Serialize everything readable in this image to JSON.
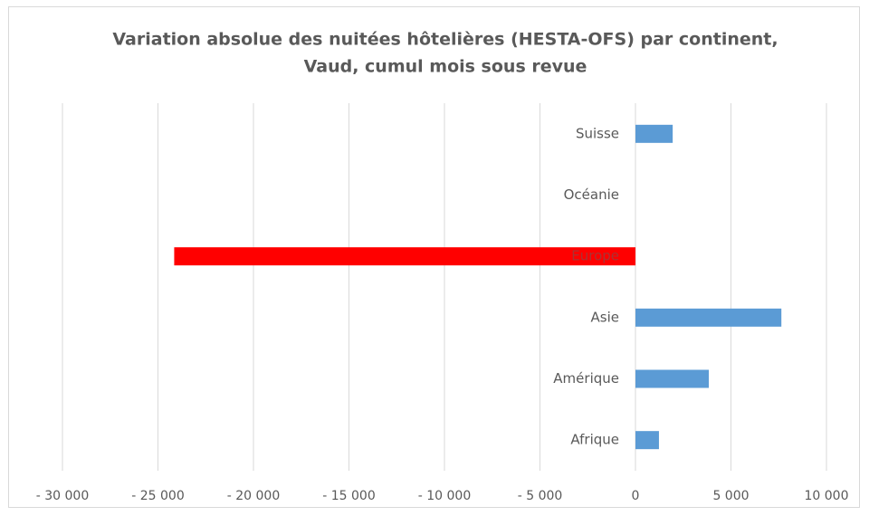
{
  "chart_data": {
    "type": "hbar",
    "title": [
      "Variation absolue des nuitées hôtelières (HESTA-OFS) par continent,",
      "Vaud, cumul mois sous revue"
    ],
    "categories": [
      "Suisse",
      "Océanie",
      "Europe",
      "Asie",
      "Amérique",
      "Afrique"
    ],
    "values": [
      1950,
      0,
      -24150,
      7640,
      3840,
      1230
    ],
    "colors": [
      "#5b9bd5",
      "#5b9bd5",
      "#ff0000",
      "#5b9bd5",
      "#5b9bd5",
      "#5b9bd5"
    ],
    "xlim": [
      -30000,
      10000
    ],
    "xticks": [
      {
        "value": -30000,
        "label": "- 30 000"
      },
      {
        "value": -25000,
        "label": "- 25 000"
      },
      {
        "value": -20000,
        "label": "- 20 000"
      },
      {
        "value": -15000,
        "label": "- 15 000"
      },
      {
        "value": -10000,
        "label": "- 10 000"
      },
      {
        "value": -5000,
        "label": "- 5 000"
      },
      0,
      {
        "value": 5000,
        "label": "5 000"
      },
      {
        "value": 10000,
        "label": "10 000"
      }
    ],
    "grid": true
  }
}
